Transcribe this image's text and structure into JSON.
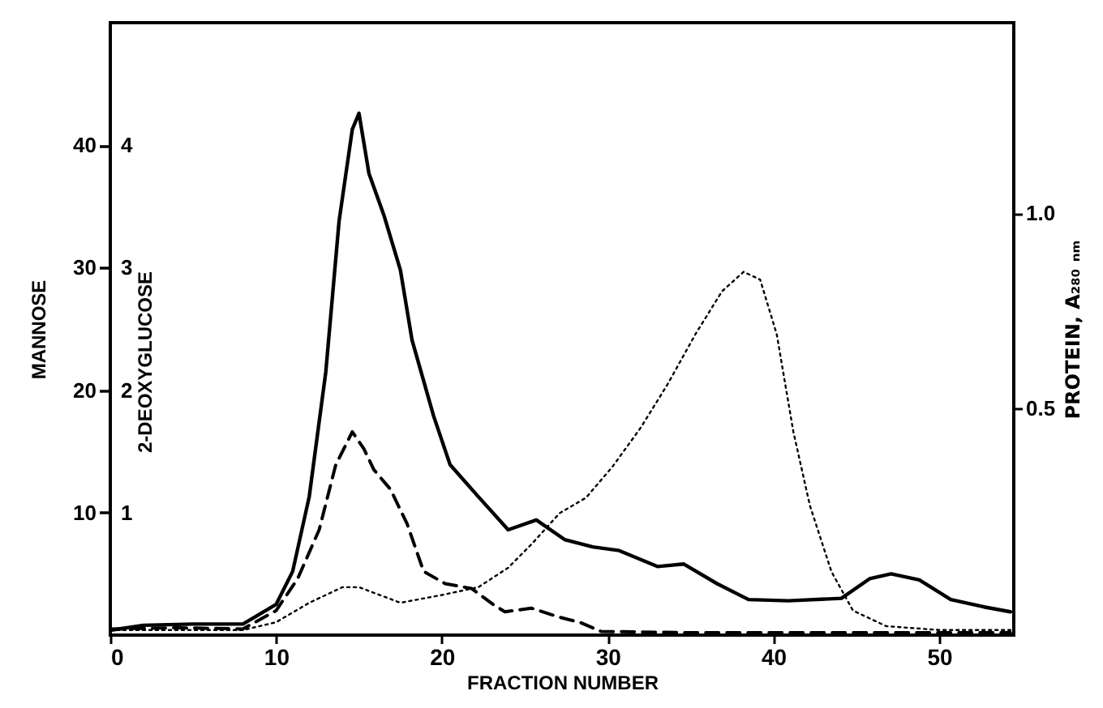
{
  "chart_data": {
    "type": "line",
    "xlabel": "FRACTION NUMBER",
    "ylabel": "MANNOSE",
    "y3label": "2-DEOXYGLUCOSE",
    "y2label": "PROTEIN,  A₂₈₀ ₙₘ",
    "xlim": [
      0,
      54.5
    ],
    "xticks": [
      0,
      10,
      20,
      30,
      40,
      50
    ],
    "ylim": [
      0,
      50
    ],
    "yticks": [
      10,
      20,
      30,
      40
    ],
    "y3lim": [
      0,
      5
    ],
    "y3ticks": [
      1,
      2,
      3,
      4
    ],
    "y2lim": [
      -0.083,
      1.49
    ],
    "y2ticks": [
      0.5,
      {
        "value": 1.0,
        "label": "1.0"
      }
    ],
    "grid": false,
    "marker": "none",
    "series": [
      {
        "color": "#000000",
        "line_style": "solid",
        "axis": "y",
        "x": [
          0,
          2,
          5,
          8,
          10,
          11,
          12,
          13,
          13.8,
          14.6,
          15,
          15.6,
          16.5,
          17.5,
          18.2,
          19.5,
          20.5,
          22.2,
          24,
          25.7,
          27.4,
          29.1,
          30.7,
          33,
          34.6,
          36.6,
          38.5,
          40.9,
          44.1,
          45.8,
          47.1,
          48.8,
          50.7,
          52.7,
          54.3
        ],
        "values": [
          0.4,
          0.8,
          0.9,
          0.9,
          2.5,
          5.2,
          11.3,
          21.5,
          33.8,
          41.3,
          42.6,
          37.7,
          34.3,
          29.8,
          24.1,
          17.9,
          13.9,
          11.3,
          8.6,
          9.4,
          7.8,
          7.2,
          6.9,
          5.6,
          5.8,
          4.2,
          2.9,
          2.8,
          3.0,
          4.6,
          5.0,
          4.5,
          2.9,
          2.3,
          1.9
        ]
      },
      {
        "color": "#000000",
        "line_style": "dashed",
        "axis": "y3",
        "x": [
          0,
          4,
          8,
          10,
          11.3,
          12.6,
          13.6,
          14.6,
          15.3,
          15.9,
          16.9,
          17.9,
          18.9,
          20.2,
          21.8,
          23.1,
          23.8,
          25.4,
          27,
          28.4,
          29.6,
          35,
          40,
          45,
          50,
          54.3
        ],
        "values": [
          0.05,
          0.06,
          0.05,
          0.2,
          0.46,
          0.86,
          1.39,
          1.66,
          1.52,
          1.35,
          1.19,
          0.91,
          0.52,
          0.42,
          0.38,
          0.25,
          0.19,
          0.22,
          0.15,
          0.1,
          0.03,
          0.02,
          0.02,
          0.02,
          0.02,
          0.02
        ]
      },
      {
        "color": "#000000",
        "line_style": "dotted",
        "axis": "y2",
        "x": [
          0,
          4,
          8,
          10,
          12,
          14,
          15,
          17.5,
          20,
          22.2,
          24,
          25.4,
          27.1,
          28.7,
          30.3,
          32,
          33.6,
          35.3,
          36.9,
          38.2,
          39.2,
          40.2,
          41.2,
          42.2,
          43.5,
          44.8,
          46.8,
          50,
          54.3
        ],
        "values": [
          -0.07,
          -0.07,
          -0.07,
          -0.05,
          0.0,
          0.04,
          0.04,
          0.0,
          0.02,
          0.04,
          0.09,
          0.15,
          0.23,
          0.27,
          0.35,
          0.45,
          0.56,
          0.69,
          0.8,
          0.85,
          0.83,
          0.69,
          0.44,
          0.25,
          0.08,
          -0.02,
          -0.06,
          -0.07,
          -0.07
        ]
      }
    ]
  }
}
